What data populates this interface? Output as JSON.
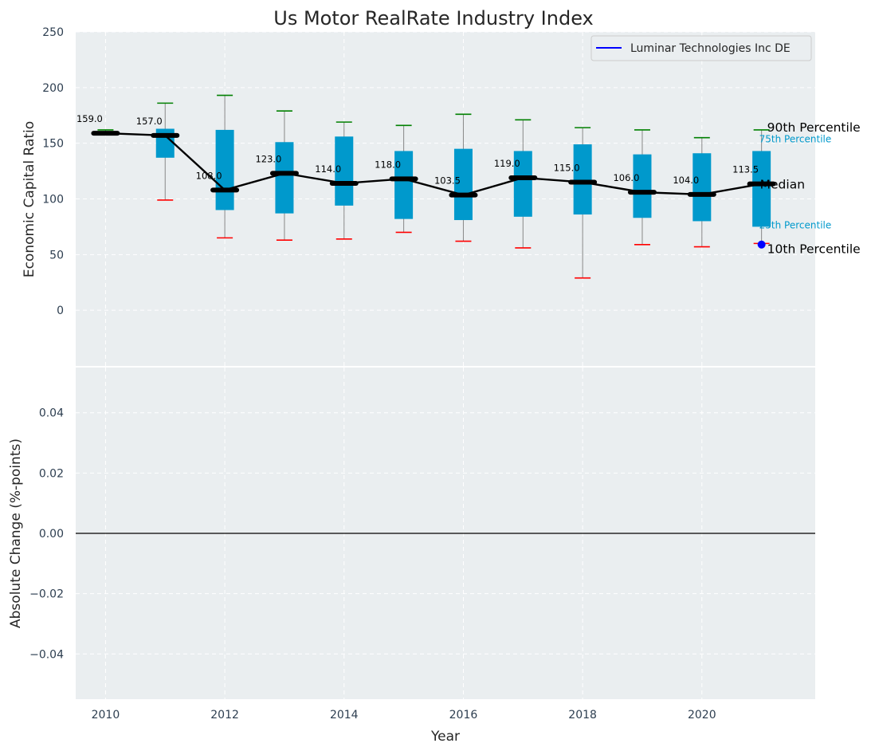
{
  "chart_data": {
    "type": "box",
    "title": "Us Motor RealRate Industry Index",
    "xlabel": "Year",
    "xticks": [
      "2010",
      "2012",
      "2014",
      "2016",
      "2018",
      "2020"
    ],
    "top_panel": {
      "ylabel": "Economic Capital Ratio",
      "ylim": [
        -50,
        250
      ],
      "yticks": [
        "0",
        "50",
        "100",
        "150",
        "200",
        "250"
      ],
      "grid": true,
      "box_color": "#0099cc",
      "median_line_color": "#000000",
      "p90_whisker_color": "#008000",
      "p10_whisker_color": "#ff0000",
      "boxes": [
        {
          "year": 2010,
          "p10": 159,
          "q1": 159,
          "median": 159.0,
          "q3": 159,
          "p90": 162,
          "label": "159.0"
        },
        {
          "year": 2011,
          "p10": 99,
          "q1": 137,
          "median": 157.0,
          "q3": 163,
          "p90": 186,
          "label": "157.0"
        },
        {
          "year": 2012,
          "p10": 65,
          "q1": 90,
          "median": 108.0,
          "q3": 162,
          "p90": 193,
          "label": "108.0"
        },
        {
          "year": 2013,
          "p10": 63,
          "q1": 87,
          "median": 123.0,
          "q3": 151,
          "p90": 179,
          "label": "123.0"
        },
        {
          "year": 2014,
          "p10": 64,
          "q1": 94,
          "median": 114.0,
          "q3": 156,
          "p90": 169,
          "label": "114.0"
        },
        {
          "year": 2015,
          "p10": 70,
          "q1": 82,
          "median": 118.0,
          "q3": 143,
          "p90": 166,
          "label": "118.0"
        },
        {
          "year": 2016,
          "p10": 62,
          "q1": 81,
          "median": 103.5,
          "q3": 145,
          "p90": 176,
          "label": "103.5"
        },
        {
          "year": 2017,
          "p10": 56,
          "q1": 84,
          "median": 119.0,
          "q3": 143,
          "p90": 171,
          "label": "119.0"
        },
        {
          "year": 2018,
          "p10": 29,
          "q1": 86,
          "median": 115.0,
          "q3": 149,
          "p90": 164,
          "label": "115.0"
        },
        {
          "year": 2019,
          "p10": 59,
          "q1": 83,
          "median": 106.0,
          "q3": 140,
          "p90": 162,
          "label": "106.0"
        },
        {
          "year": 2020,
          "p10": 57,
          "q1": 80,
          "median": 104.0,
          "q3": 141,
          "p90": 155,
          "label": "104.0"
        },
        {
          "year": 2021,
          "p10": 60,
          "q1": 75,
          "median": 113.5,
          "q3": 143,
          "p90": 162,
          "label": "113.5"
        }
      ],
      "company": {
        "name": "Luminar Technologies Inc DE",
        "color": "#0000ff",
        "points": [
          {
            "year": 2021,
            "value": 59
          }
        ]
      },
      "annotations": {
        "p90": "90th Percentile",
        "p75": "75th Percentile",
        "median": "Median",
        "p25": "25th Percentile",
        "p10": "10th Percentile"
      },
      "legend": {
        "entries": [
          "Luminar Technologies Inc DE"
        ],
        "placement": "top-right"
      }
    },
    "bottom_panel": {
      "ylabel": "Absolute Change (%-points)",
      "ylim": [
        -0.055,
        0.055
      ],
      "yticks": [
        "−0.04",
        "−0.02",
        "0.00",
        "0.02",
        "0.04"
      ],
      "grid": true,
      "zero_line": true
    }
  }
}
